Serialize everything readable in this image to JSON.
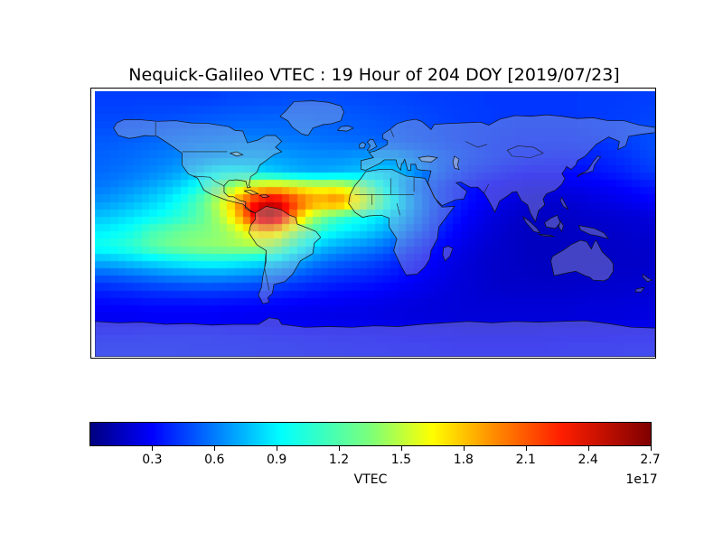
{
  "chart_data": {
    "type": "heatmap",
    "title": "Nequick-Galileo VTEC : 19 Hour of 204 DOY [2019/07/23]",
    "colormap": "jet",
    "projection": "equirectangular world map",
    "map_extent": {
      "lon_min": -180,
      "lon_max": 180,
      "lat_min": -90,
      "lat_max": 90
    },
    "colorbar": {
      "label": "VTEC",
      "exponent_label": "1e17",
      "ticks": [
        0.3,
        0.6,
        0.9,
        1.2,
        1.5,
        1.8,
        2.1,
        2.4,
        2.7
      ],
      "vmin": 0,
      "vmax": 2.7
    },
    "grid_value_units": "1e16 electrons/m^2",
    "grid_vmax": 27,
    "lon_start": -175,
    "lon_step": 10,
    "lat_start": 85,
    "lat_step": -10,
    "grid": [
      [
        5,
        5,
        5,
        5,
        5,
        5,
        5,
        5,
        5.2,
        5.2,
        5.3,
        5.3,
        5.4,
        5.4,
        5.4,
        5.4,
        5.3,
        5.3,
        5.2,
        5.2,
        5.1,
        5,
        5,
        4.9,
        4.9,
        4.8,
        4.8,
        4.8,
        4.8,
        4.8,
        4.8,
        4.9,
        4.9,
        4.9,
        5,
        5
      ],
      [
        5.2,
        5.2,
        5.2,
        5.3,
        5.3,
        5.4,
        5.5,
        5.6,
        5.7,
        5.8,
        5.8,
        5.9,
        5.9,
        5.9,
        5.8,
        5.8,
        5.7,
        5.6,
        5.5,
        5.4,
        5.3,
        5.2,
        5.1,
        5,
        4.9,
        4.9,
        4.8,
        4.8,
        4.8,
        4.8,
        4.8,
        4.9,
        4.9,
        5,
        5,
        5.1
      ],
      [
        5.5,
        5.5,
        5.6,
        5.7,
        5.8,
        5.9,
        6,
        6.1,
        6.2,
        6.3,
        6.3,
        6.3,
        6.2,
        6.2,
        6.1,
        6,
        5.9,
        5.8,
        5.7,
        5.6,
        5.4,
        5.3,
        5.1,
        5,
        4.9,
        4.8,
        4.8,
        4.7,
        4.7,
        4.7,
        4.7,
        4.8,
        4.9,
        5,
        5.1,
        5.3
      ],
      [
        5.8,
        5.9,
        6,
        6.1,
        6.3,
        6.4,
        6.6,
        6.7,
        6.8,
        6.9,
        6.9,
        6.8,
        6.7,
        6.6,
        6.5,
        6.4,
        6.3,
        6.2,
        6,
        5.8,
        5.6,
        5.4,
        5.2,
        5,
        4.9,
        4.7,
        4.6,
        4.5,
        4.5,
        4.5,
        4.5,
        4.6,
        4.7,
        4.9,
        5.1,
        5.4
      ],
      [
        6,
        6.1,
        6.3,
        6.5,
        6.7,
        7,
        7.3,
        7.5,
        7.7,
        7.8,
        7.8,
        7.7,
        7.5,
        7.3,
        7.2,
        7.2,
        7.4,
        7.6,
        7.7,
        7.4,
        6.8,
        6.2,
        5.7,
        5.3,
        5,
        4.7,
        4.5,
        4.3,
        4.2,
        4.1,
        4.1,
        4.2,
        4.3,
        4.5,
        4.8,
        5.2
      ],
      [
        6.2,
        6.4,
        6.6,
        6.9,
        7.3,
        7.8,
        8.6,
        9.6,
        10.2,
        10,
        9.4,
        8.8,
        8.3,
        8,
        7.9,
        8.1,
        8.4,
        8.7,
        8.8,
        8.4,
        7.4,
        6.3,
        5.5,
        4.9,
        4.4,
        4.1,
        3.8,
        3.6,
        3.5,
        3.5,
        3.6,
        3.7,
        3.9,
        4.1,
        4.4,
        4.8
      ],
      [
        6.6,
        6.9,
        7.3,
        7.8,
        8.4,
        9.2,
        10.4,
        12,
        14,
        16,
        17.5,
        18.2,
        17.6,
        16.8,
        16.4,
        16.6,
        15.2,
        13,
        10.4,
        8.2,
        6.6,
        5.5,
        4.7,
        4.1,
        3.6,
        3.3,
        3,
        2.8,
        2.7,
        2.7,
        2.8,
        2.9,
        3.1,
        3.3,
        3.6,
        3.9
      ],
      [
        7.4,
        7.8,
        8.3,
        8.9,
        9.6,
        10.6,
        12,
        14,
        17,
        21,
        24,
        25,
        23,
        20.5,
        19.5,
        20.5,
        18.5,
        15.5,
        12,
        9.4,
        7.2,
        5.7,
        4.7,
        4,
        3.4,
        3,
        2.6,
        2.3,
        2.1,
        2.1,
        2.2,
        2.4,
        2.6,
        2.8,
        3,
        3.3
      ],
      [
        8.6,
        9,
        9.5,
        10,
        10.6,
        11.3,
        12.2,
        13.6,
        16,
        20,
        25.5,
        26.5,
        21.5,
        16.5,
        13.5,
        12,
        11,
        10.2,
        9.3,
        8.2,
        6.8,
        5.4,
        4.3,
        3.6,
        3,
        2.5,
        2.2,
        1.9,
        1.8,
        1.8,
        1.9,
        2,
        2.1,
        2.2,
        2.3,
        2.4
      ],
      [
        9.8,
        10.2,
        10.7,
        11.8,
        12.4,
        12.9,
        13.3,
        13.6,
        14.4,
        16,
        18.5,
        18.5,
        15.5,
        12.8,
        11.2,
        10.2,
        9.6,
        9,
        8.2,
        7.2,
        5.9,
        4.8,
        3.9,
        3.2,
        2.7,
        2.3,
        2,
        1.8,
        1.7,
        1.7,
        1.8,
        1.9,
        1.9,
        2,
        2.1,
        2.2
      ],
      [
        10.6,
        11,
        11.5,
        12.4,
        13,
        13.4,
        13.8,
        14,
        14.2,
        14.4,
        14.4,
        13.6,
        11.8,
        9.8,
        8.6,
        7.9,
        7.4,
        7,
        6.4,
        5.6,
        4.7,
        3.9,
        3.3,
        2.8,
        2.4,
        2.1,
        1.9,
        1.8,
        1.7,
        1.7,
        1.8,
        1.8,
        1.9,
        1.9,
        2,
        2
      ],
      [
        8.2,
        8.5,
        8.9,
        9.3,
        9.7,
        10.1,
        10.4,
        10.5,
        10.4,
        10.1,
        9.7,
        9.2,
        8.4,
        7.4,
        6.6,
        6.1,
        5.7,
        5.4,
        5,
        4.4,
        3.8,
        3.3,
        2.9,
        2.5,
        2.2,
        2,
        1.9,
        1.8,
        1.7,
        1.7,
        1.8,
        1.8,
        1.8,
        1.9,
        1.9,
        2
      ],
      [
        5.8,
        6,
        6.3,
        6.6,
        6.9,
        7.1,
        7.3,
        7.4,
        7.3,
        7.1,
        6.8,
        6.4,
        6,
        5.5,
        5.1,
        4.8,
        4.6,
        4.4,
        4.1,
        3.8,
        3.4,
        3,
        2.7,
        2.4,
        2.2,
        2,
        1.9,
        1.9,
        1.8,
        1.8,
        1.9,
        1.9,
        2,
        2,
        2,
        2.1
      ],
      [
        4.2,
        4.4,
        4.5,
        4.7,
        4.8,
        4.9,
        5,
        5,
        4.9,
        4.8,
        4.7,
        4.5,
        4.3,
        4.1,
        3.9,
        3.7,
        3.6,
        3.5,
        3.3,
        3.1,
        2.9,
        2.7,
        2.5,
        2.3,
        2.2,
        2.1,
        2,
        2,
        2,
        2,
        2,
        2.1,
        2.1,
        2.1,
        2.2,
        2.2
      ],
      [
        3.4,
        3.5,
        3.5,
        3.6,
        3.6,
        3.6,
        3.6,
        3.6,
        3.5,
        3.5,
        3.4,
        3.3,
        3.2,
        3.1,
        3,
        3,
        2.9,
        2.8,
        2.7,
        2.6,
        2.5,
        2.4,
        2.4,
        2.3,
        2.3,
        2.3,
        2.3,
        2.3,
        2.3,
        2.3,
        2.3,
        2.4,
        2.4,
        2.4,
        2.5,
        2.5
      ],
      [
        3,
        3,
        3,
        3.1,
        3.1,
        3.1,
        3.1,
        3.1,
        3,
        3,
        3,
        2.9,
        2.9,
        2.8,
        2.8,
        2.7,
        2.7,
        2.7,
        2.6,
        2.6,
        2.5,
        2.5,
        2.4,
        2.4,
        2.4,
        2.4,
        2.4,
        2.4,
        2.4,
        2.4,
        2.4,
        2.5,
        2.5,
        2.5,
        2.5,
        2.6
      ],
      [
        3.8,
        3.8,
        3.8,
        3.9,
        3.9,
        3.9,
        3.9,
        3.9,
        3.8,
        3.8,
        3.8,
        3.7,
        3.7,
        3.6,
        3.6,
        3.5,
        3.5,
        3.5,
        3.4,
        3.4,
        3.3,
        3.3,
        3.3,
        3.2,
        3.2,
        3.2,
        3.2,
        3.2,
        3.2,
        3.3,
        3.3,
        3.3,
        3.3,
        3.4,
        3.4,
        3.4
      ],
      [
        4.1,
        4.1,
        4.1,
        4.1,
        4.1,
        4.1,
        4,
        4,
        4,
        4,
        3.9,
        3.9,
        3.9,
        3.8,
        3.8,
        3.8,
        3.7,
        3.7,
        3.7,
        3.6,
        3.6,
        3.6,
        3.5,
        3.5,
        3.5,
        3.5,
        3.5,
        3.5,
        3.5,
        3.5,
        3.6,
        3.6,
        3.6,
        3.6,
        3.7,
        3.7
      ]
    ]
  }
}
